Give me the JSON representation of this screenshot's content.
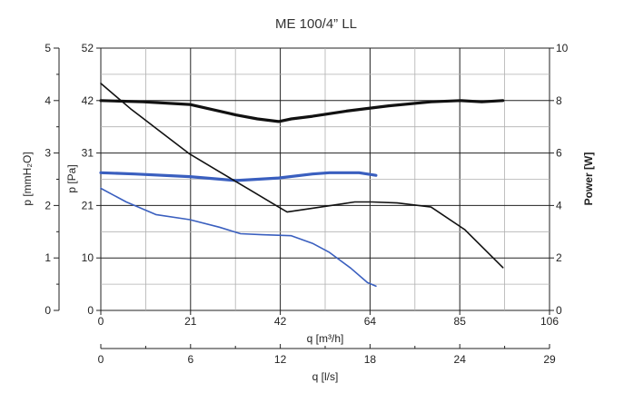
{
  "chart_data": {
    "type": "line",
    "title": "ME 100/4” LL",
    "left_axis_outer": {
      "label": "p [mmH₂O]",
      "ticks": [
        "0",
        "1",
        "2",
        "3",
        "4",
        "5"
      ]
    },
    "left_axis_inner": {
      "label": "p [Pa]",
      "ticks": [
        "0",
        "10",
        "21",
        "31",
        "42",
        "52"
      ],
      "ylim": [
        0,
        52
      ]
    },
    "right_axis": {
      "label": "Power [W]",
      "ticks": [
        "0",
        "2",
        "4",
        "6",
        "8",
        "10"
      ],
      "ylim": [
        0,
        10
      ]
    },
    "x_axis_primary": {
      "label": "q [m³/h]",
      "ticks": [
        "0",
        "21",
        "42",
        "64",
        "85",
        "106"
      ],
      "xlim": [
        0,
        106
      ]
    },
    "x_axis_secondary": {
      "label": "q [l/s]",
      "ticks": [
        "0",
        "6",
        "12",
        "18",
        "24",
        "29"
      ]
    },
    "grid": true,
    "series": [
      {
        "axis": "power",
        "color": "#111111",
        "width": 3.2,
        "x": [
          0,
          10,
          21,
          32,
          37,
          42,
          45,
          50,
          58,
          68,
          78,
          85,
          90,
          95
        ],
        "y": [
          8.0,
          7.95,
          7.85,
          7.45,
          7.3,
          7.2,
          7.3,
          7.4,
          7.6,
          7.8,
          7.95,
          8.0,
          7.95,
          8.0
        ]
      },
      {
        "axis": "power",
        "color": "#3a5fbf",
        "width": 3.2,
        "x": [
          0,
          8,
          21,
          32,
          42,
          50,
          54,
          58,
          61,
          65
        ],
        "y": [
          5.25,
          5.2,
          5.1,
          4.95,
          5.05,
          5.2,
          5.25,
          5.25,
          5.25,
          5.15
        ]
      },
      {
        "axis": "pressure",
        "color": "#111111",
        "width": 1.6,
        "x": [
          0,
          7,
          14,
          21,
          28,
          35,
          42,
          44,
          48,
          56,
          60,
          64,
          70,
          78,
          86,
          95
        ],
        "y": [
          45,
          40,
          35.5,
          31,
          27.5,
          24,
          20.5,
          19.5,
          20,
          21,
          21.5,
          21.5,
          21.3,
          20.5,
          16,
          8.5
        ]
      },
      {
        "axis": "pressure",
        "color": "#3a5fbf",
        "width": 1.6,
        "x": [
          0,
          6,
          13,
          21,
          28,
          33,
          38,
          45,
          50,
          54,
          59,
          63,
          65
        ],
        "y": [
          24.2,
          21.5,
          19,
          18,
          16.5,
          15.2,
          15,
          14.8,
          13.3,
          11.5,
          8.4,
          5.5,
          4.8
        ]
      }
    ]
  }
}
